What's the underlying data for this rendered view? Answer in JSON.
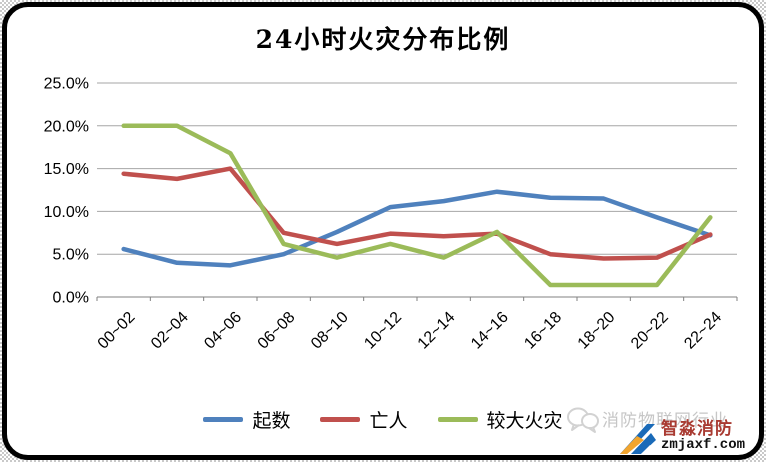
{
  "chart_data": {
    "type": "line",
    "title": "24小时火灾分布比例",
    "categories": [
      "00~02",
      "02~04",
      "04~06",
      "06~08",
      "08~10",
      "10~12",
      "12~14",
      "14~16",
      "16~18",
      "18~20",
      "20~22",
      "22~24"
    ],
    "series": [
      {
        "name": "起数",
        "color": "#4F81BD",
        "values": [
          5.6,
          4.0,
          3.7,
          5.0,
          7.6,
          10.5,
          11.2,
          12.3,
          11.6,
          11.5,
          9.3,
          7.2
        ]
      },
      {
        "name": "亡人",
        "color": "#C0504D",
        "values": [
          14.4,
          13.8,
          15.0,
          7.5,
          6.2,
          7.4,
          7.1,
          7.4,
          5.0,
          4.5,
          4.6,
          7.3
        ]
      },
      {
        "name": "较大火灾",
        "color": "#9BBB59",
        "values": [
          20.0,
          20.0,
          16.8,
          6.2,
          4.6,
          6.2,
          4.6,
          7.6,
          1.4,
          1.4,
          1.4,
          9.3
        ]
      }
    ],
    "ylim": [
      0,
      25
    ],
    "y_tick_step": 5,
    "y_ticks": [
      "0.0%",
      "5.0%",
      "10.0%",
      "15.0%",
      "20.0%",
      "25.0%"
    ],
    "xlabel": "",
    "ylabel": "",
    "grid": true,
    "legend_position": "bottom",
    "gridline_color": "#A6A6A6",
    "axis_color": "#808080",
    "tick_label_color": "#000000"
  },
  "watermark": {
    "text": "消防物联网行业"
  },
  "logo": {
    "name": "智淼消防",
    "domain": "zmjaxf.com",
    "blue": "#1a6ab8",
    "orange": "#f2a52e"
  }
}
